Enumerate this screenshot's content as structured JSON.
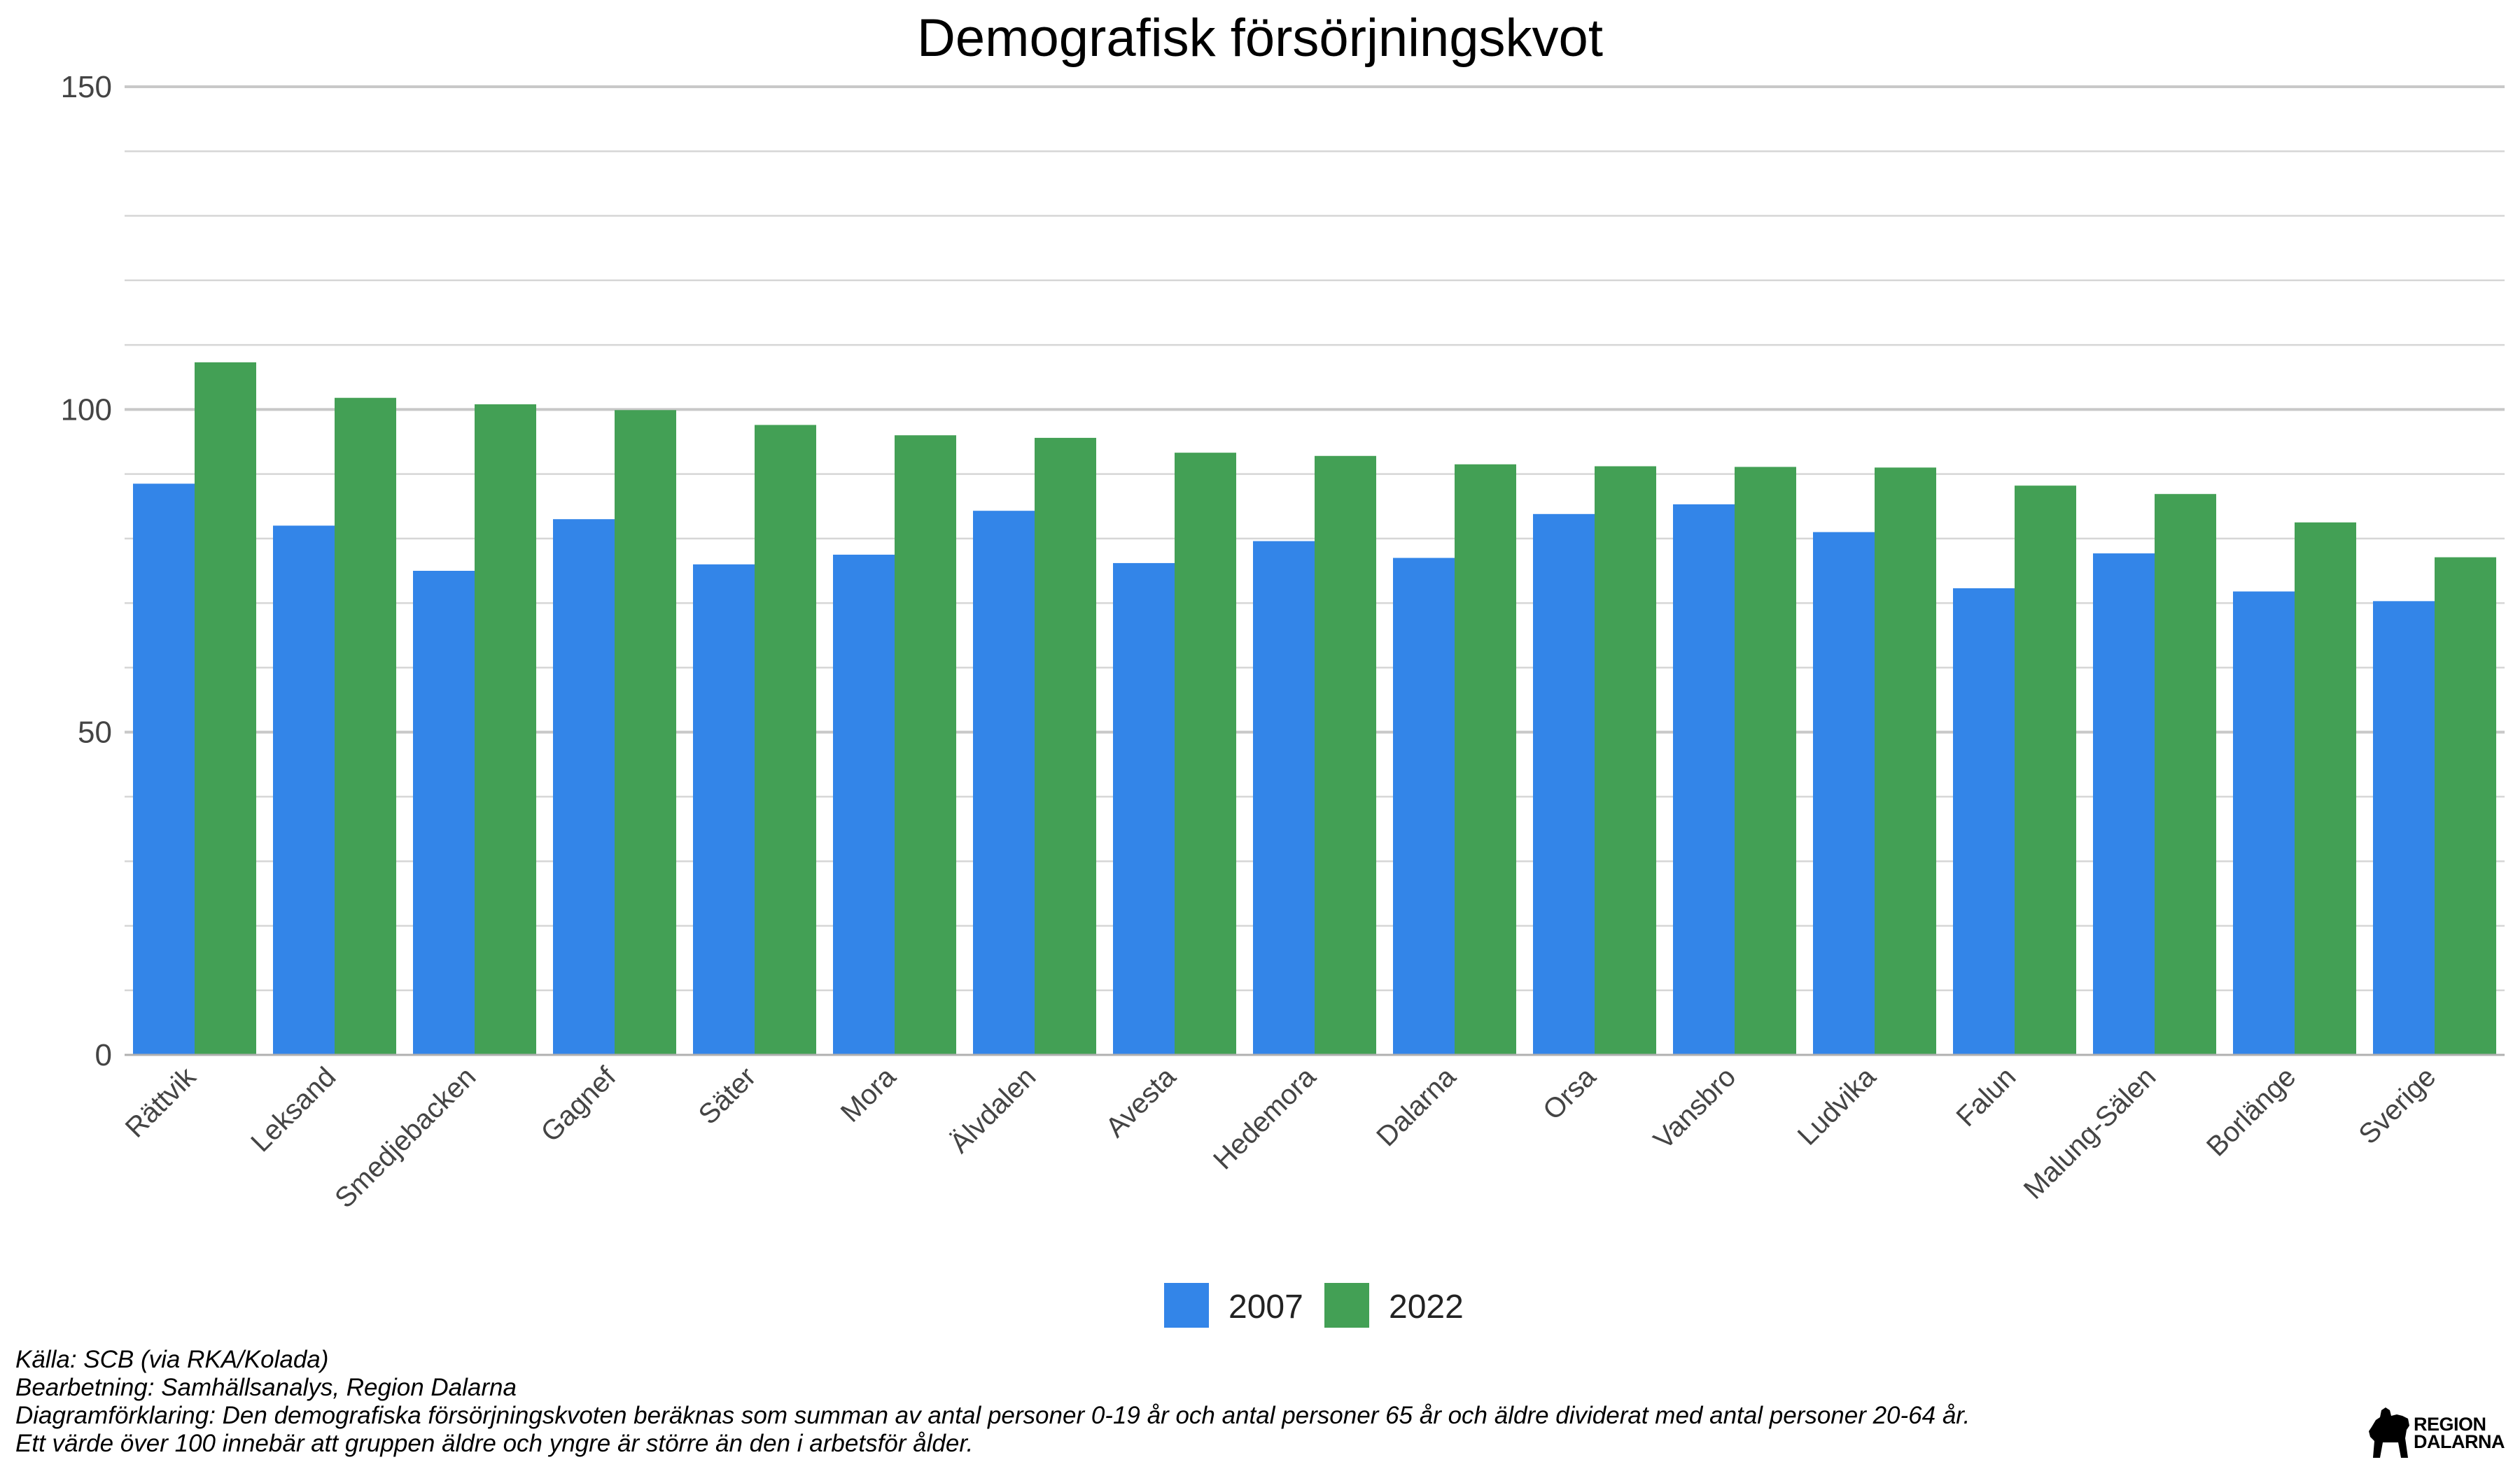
{
  "chart_data": {
    "type": "bar",
    "title": "Demografisk försörjningskvot",
    "xlabel": "",
    "ylabel": "",
    "ylim": [
      0,
      150
    ],
    "yticks": [
      0,
      50,
      100,
      150
    ],
    "grid": true,
    "legend_position": "bottom",
    "categories": [
      "Rättvik",
      "Leksand",
      "Smedjebacken",
      "Gagnef",
      "Säter",
      "Mora",
      "Älvdalen",
      "Avesta",
      "Hedemora",
      "Dalarna",
      "Orsa",
      "Vansbro",
      "Ludvika",
      "Falun",
      "Malung-Sälen",
      "Borlänge",
      "Sverige"
    ],
    "series": [
      {
        "name": "2007",
        "color": "#3385E8",
        "values": [
          88.5,
          82,
          75,
          83,
          76,
          77.5,
          84.3,
          76.2,
          79.6,
          77,
          83.8,
          85.3,
          81,
          72.3,
          77.7,
          71.8,
          70.3
        ]
      },
      {
        "name": "2022",
        "color": "#43A055",
        "values": [
          107.3,
          101.8,
          100.8,
          99.9,
          97.6,
          96,
          95.6,
          93.3,
          92.8,
          91.5,
          91.2,
          91.1,
          91,
          88.2,
          86.9,
          82.5,
          77.1
        ]
      }
    ]
  },
  "footer": {
    "source": "Källa: SCB (via RKA/Kolada)",
    "processing": "Bearbetning: Samhällsanalys, Region Dalarna",
    "explanation": "Diagramförklaring: Den demografiska försörjningskvoten beräknas som summan av antal personer 0-19 år och antal personer 65 år och äldre dividerat med antal personer 20-64 år.",
    "note": "Ett värde över 100 innebär att gruppen äldre och yngre är större än den i arbetsför ålder."
  },
  "logo": {
    "line1": "REGION",
    "line2": "DALARNA",
    "icon": "dala-horse-icon"
  }
}
